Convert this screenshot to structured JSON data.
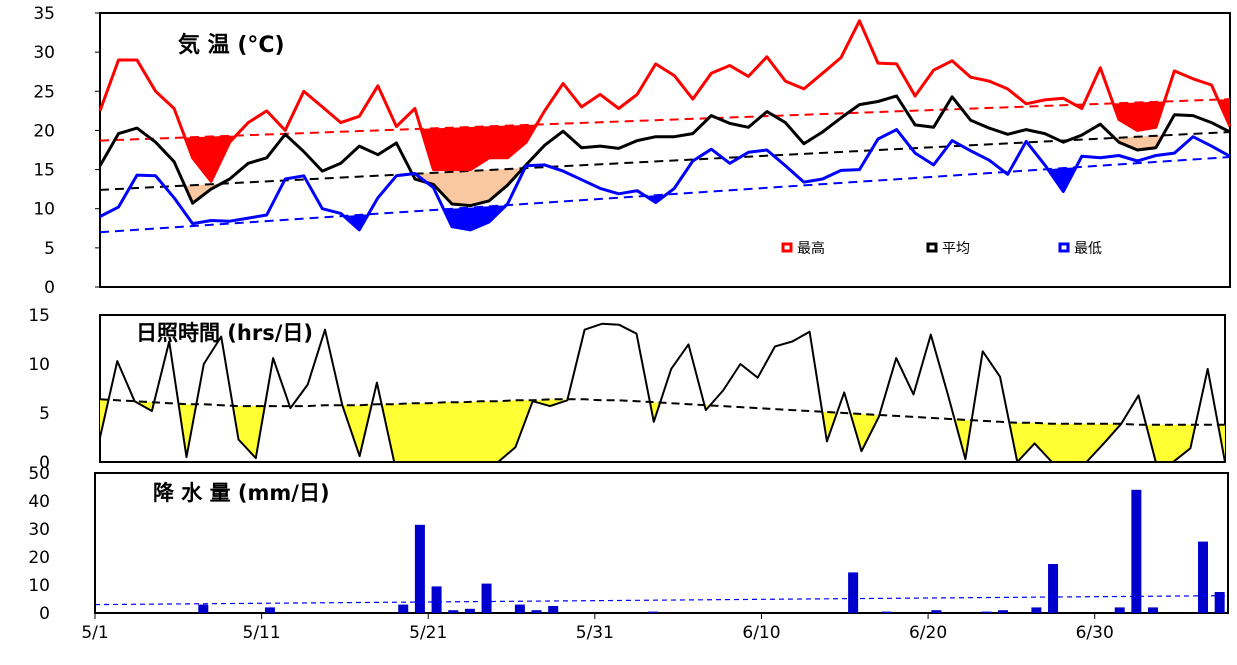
{
  "chart_data": [
    {
      "type": "line",
      "title": "気 温 (°C)",
      "ylim": [
        0,
        35
      ],
      "yticks": [
        0,
        5,
        10,
        15,
        20,
        25,
        30,
        35
      ],
      "legend_placement": "bottom-right",
      "x_start_date": "5/1",
      "series": [
        {
          "name": "最高",
          "color": "#ff0000",
          "values": [
            22.5,
            29,
            29,
            25,
            22.8,
            16.5,
            13.5,
            18.5,
            21,
            22.5,
            20,
            25,
            23,
            21,
            21.8,
            25.7,
            20.5,
            22.8,
            15,
            15,
            15,
            16.5,
            16.5,
            18.5,
            22.5,
            26,
            23,
            24.6,
            22.8,
            24.6,
            28.5,
            27,
            24,
            27.3,
            28.3,
            26.9,
            29.4,
            26.3,
            25.3,
            27.3,
            29.3,
            34,
            28.6,
            28.5,
            24.4,
            27.7,
            28.9,
            26.8,
            26.3,
            25.3,
            23.4,
            23.9,
            24.1,
            22.8,
            28,
            21.4,
            20,
            20.4,
            27.6,
            26.6,
            25.8,
            20.5
          ]
        },
        {
          "name": "平均",
          "color": "#000000",
          "values": [
            15.5,
            19.6,
            20.3,
            18.5,
            16,
            10.7,
            12.5,
            13.8,
            15.8,
            16.5,
            19.5,
            17.3,
            14.8,
            15.8,
            18,
            16.9,
            18.4,
            13.8,
            13.1,
            10.6,
            10.4,
            11,
            13,
            15.6,
            18.1,
            19.9,
            17.8,
            18,
            17.7,
            18.7,
            19.2,
            19.2,
            19.6,
            21.9,
            20.9,
            20.4,
            22.4,
            21,
            18.3,
            19.8,
            21.6,
            23.3,
            23.7,
            24.4,
            20.7,
            20.4,
            24.3,
            21.3,
            20.3,
            19.5,
            20.1,
            19.6,
            18.5,
            19.4,
            20.8,
            18.5,
            17.5,
            17.8,
            22,
            21.9,
            21,
            19.8
          ]
        },
        {
          "name": "最低",
          "color": "#0000ff",
          "values": [
            9,
            10.2,
            14.3,
            14.2,
            11.4,
            8.1,
            8.5,
            8.4,
            8.8,
            9.2,
            13.8,
            14.2,
            10,
            9.4,
            7.3,
            11.4,
            14.2,
            14.5,
            12.7,
            7.7,
            7.3,
            8.3,
            10.6,
            15.5,
            15.6,
            14.8,
            13.7,
            12.6,
            11.9,
            12.3,
            10.8,
            12.6,
            16.1,
            17.6,
            15.8,
            17.2,
            17.5,
            15.5,
            13.4,
            13.8,
            14.9,
            15,
            18.9,
            20.1,
            17.1,
            15.6,
            18.7,
            17.4,
            16.2,
            14.4,
            18.6,
            15.6,
            12.2,
            16.7,
            16.5,
            16.8,
            16.1,
            16.8,
            17.1,
            19.2,
            18,
            16.7
          ]
        },
        {
          "name": "",
          "color": "#ff0000",
          "dashed": true,
          "values_linear": [
            18.7,
            24
          ]
        },
        {
          "name": "",
          "color": "#000000",
          "dashed": true,
          "values_linear": [
            12.4,
            19.8
          ]
        },
        {
          "name": "",
          "color": "#0000ff",
          "dashed": true,
          "values_linear": [
            7,
            16.6
          ]
        }
      ]
    },
    {
      "type": "line",
      "title": "日照時間 (hrs/日)",
      "ylim": [
        0,
        15
      ],
      "yticks": [
        0,
        5,
        10,
        15
      ],
      "series": [
        {
          "name": "",
          "color": "#000000",
          "values": [
            2.5,
            10.3,
            6.2,
            5.2,
            12.3,
            0.5,
            10,
            12.8,
            2.3,
            0.4,
            10.6,
            5.5,
            7.9,
            13.5,
            5.8,
            0.6,
            8.1,
            0,
            0,
            0,
            0,
            0,
            0,
            0,
            1.5,
            6.2,
            5.7,
            6.3,
            13.5,
            14.1,
            14,
            13.1,
            4.1,
            9.5,
            12,
            5.3,
            7.3,
            10,
            8.6,
            11.8,
            12.3,
            13.3,
            2.1,
            7.1,
            1.1,
            4.6,
            10.6,
            6.9,
            13,
            6.8,
            0.3,
            11.3,
            8.7,
            0,
            1.9,
            0,
            0,
            0,
            1.9,
            3.9,
            6.8,
            0,
            0,
            1.4,
            9.5,
            0
          ]
        },
        {
          "name": "",
          "color": "#000000",
          "dashed": true,
          "values": [
            6.4,
            6.3,
            6.2,
            6.1,
            6.0,
            5.9,
            5.9,
            5.8,
            5.7,
            5.7,
            5.7,
            5.7,
            5.7,
            5.8,
            5.8,
            5.8,
            5.9,
            5.9,
            6.0,
            6.0,
            6.1,
            6.1,
            6.2,
            6.2,
            6.3,
            6.3,
            6.4,
            6.4,
            6.4,
            6.3,
            6.3,
            6.2,
            6.1,
            6.0,
            5.9,
            5.8,
            5.7,
            5.6,
            5.5,
            5.4,
            5.3,
            5.2,
            5.1,
            5.0,
            4.9,
            4.8,
            4.7,
            4.6,
            4.5,
            4.4,
            4.3,
            4.2,
            4.1,
            4.0,
            4.0,
            3.9,
            3.9,
            3.9,
            3.9,
            3.9,
            3.8,
            3.8,
            3.8,
            3.8,
            3.8,
            3.8
          ]
        }
      ]
    },
    {
      "type": "bar",
      "title": "降 水 量 (mm/日)",
      "ylim": [
        0,
        50
      ],
      "yticks": [
        0,
        10,
        20,
        30,
        40,
        50
      ],
      "xtick_labels": [
        "5/1",
        "5/11",
        "5/21",
        "5/31",
        "6/10",
        "6/20",
        "6/30"
      ],
      "series": [
        {
          "name": "",
          "color": "#0000cc",
          "bars": [
            [
              6,
              3
            ],
            [
              10,
              2
            ],
            [
              18,
              3
            ],
            [
              19,
              31.5
            ],
            [
              20,
              9.5
            ],
            [
              21,
              1
            ],
            [
              22,
              1.5
            ],
            [
              23,
              10.5
            ],
            [
              25,
              3
            ],
            [
              26,
              1
            ],
            [
              27,
              2.5
            ],
            [
              33,
              0.5
            ],
            [
              45,
              14.5
            ],
            [
              47,
              0.5
            ],
            [
              50,
              1
            ],
            [
              53,
              0.5
            ],
            [
              54,
              1
            ],
            [
              56,
              2
            ],
            [
              57,
              17.5
            ],
            [
              61,
              2
            ],
            [
              62,
              44
            ],
            [
              63,
              2
            ],
            [
              66,
              25.5
            ],
            [
              67,
              7.5
            ]
          ]
        },
        {
          "name": "",
          "color": "#0000ff",
          "dashed": true,
          "values_linear": [
            3,
            6.2
          ]
        }
      ]
    }
  ],
  "colors": {
    "red": "#ff0000",
    "black": "#000000",
    "blue": "#0000ff",
    "bar_blue": "#0000cc",
    "fill_red": "#ff0000",
    "fill_peach": "#f9c8a0",
    "fill_blue": "#0000ff",
    "fill_yellow": "#ffff33"
  }
}
